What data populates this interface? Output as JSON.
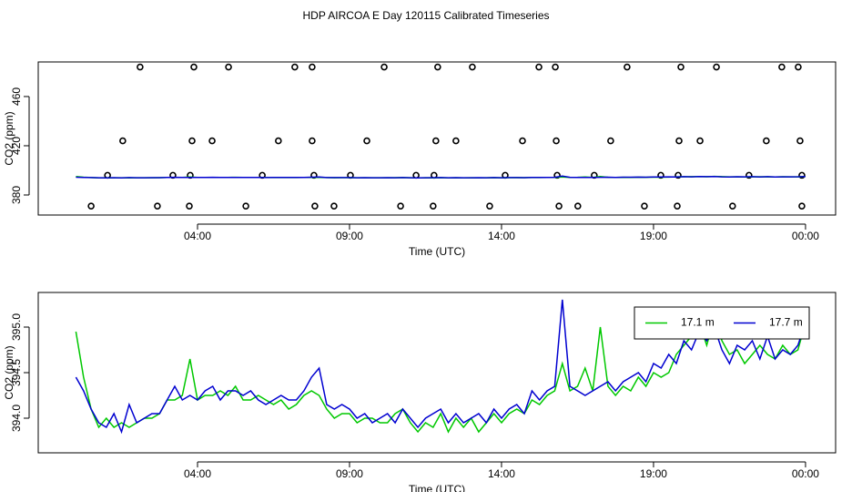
{
  "title": "HDP AIRCOA E  Day 120115  Calibrated Timeseries",
  "chart_data": [
    {
      "type": "scatter",
      "ylabel": "CO2 (ppm)",
      "xlabel": "Time (UTC)",
      "xlim": [
        -1.24,
        24.99
      ],
      "xticks": [
        {
          "value": 4,
          "label": "04:00"
        },
        {
          "value": 9,
          "label": "09:00"
        },
        {
          "value": 14,
          "label": "14:00"
        },
        {
          "value": 19,
          "label": "19:00"
        },
        {
          "value": 24,
          "label": "00:00"
        }
      ],
      "ylim": [
        363.7,
        488.1
      ],
      "yticks": [
        380,
        420,
        460
      ],
      "series": [
        {
          "color": "#000000",
          "x": [
            2.11,
            3.88,
            5.02,
            7.2,
            7.77,
            10.14,
            11.9,
            13.04,
            15.23,
            15.77,
            18.13,
            19.9,
            21.07,
            23.22,
            23.76,
            1.54,
            3.82,
            4.48,
            6.66,
            7.77,
            9.57,
            11.84,
            12.5,
            14.69,
            15.8,
            17.59,
            19.84,
            20.53,
            22.71,
            23.82,
            1.04,
            3.19,
            3.76,
            6.13,
            7.83,
            9.03,
            11.19,
            11.78,
            14.12,
            15.83,
            17.05,
            19.24,
            19.81,
            22.14,
            23.88,
            0.5,
            2.68,
            3.73,
            5.59,
            7.86,
            8.49,
            10.68,
            11.75,
            13.61,
            15.89,
            16.51,
            18.7,
            19.78,
            21.6,
            23.88
          ],
          "values": [
            484,
            484,
            484,
            484,
            484,
            484,
            484,
            484,
            484,
            484,
            484,
            484,
            484,
            484,
            484,
            424,
            424,
            424,
            424,
            424,
            424,
            424,
            424,
            424,
            424,
            424,
            424,
            424,
            424,
            424,
            396,
            396,
            396,
            396,
            396,
            396,
            396,
            396,
            396,
            396,
            396,
            396,
            396,
            396,
            396,
            371,
            371,
            371,
            371,
            371,
            371,
            371,
            371,
            371,
            371,
            371,
            371,
            371,
            371,
            371
          ]
        }
      ]
    },
    {
      "type": "line",
      "ylabel": "CO2 (ppm)",
      "xlabel": "Time (UTC)",
      "xlim": [
        -1.24,
        24.99
      ],
      "xticks": [
        {
          "value": 4,
          "label": "04:00"
        },
        {
          "value": 9,
          "label": "09:00"
        },
        {
          "value": 14,
          "label": "14:00"
        },
        {
          "value": 19,
          "label": "19:00"
        },
        {
          "value": 24,
          "label": "00:00"
        }
      ],
      "ylim": [
        393.62,
        395.38
      ],
      "yticks": [
        {
          "value": 394,
          "label": "394.0"
        },
        394.5,
        {
          "value": 395,
          "label": "395.0"
        }
      ],
      "legend": "top-right",
      "x": [
        0,
        0.25,
        0.5,
        0.75,
        1,
        1.25,
        1.5,
        1.75,
        2,
        2.25,
        2.5,
        2.75,
        3,
        3.25,
        3.5,
        3.75,
        4,
        4.25,
        4.5,
        4.75,
        5,
        5.25,
        5.5,
        5.75,
        6,
        6.25,
        6.5,
        6.75,
        7,
        7.25,
        7.5,
        7.75,
        8,
        8.25,
        8.5,
        8.75,
        9,
        9.25,
        9.5,
        9.75,
        10,
        10.25,
        10.5,
        10.75,
        11,
        11.25,
        11.5,
        11.75,
        12,
        12.25,
        12.5,
        12.75,
        13,
        13.25,
        13.5,
        13.75,
        14,
        14.25,
        14.5,
        14.75,
        15,
        15.25,
        15.5,
        15.75,
        16,
        16.25,
        16.5,
        16.75,
        17,
        17.25,
        17.5,
        17.75,
        18,
        18.25,
        18.5,
        18.75,
        19,
        19.25,
        19.5,
        19.75,
        20,
        20.25,
        20.5,
        20.75,
        21,
        21.25,
        21.5,
        21.75,
        22,
        22.25,
        22.5,
        22.75,
        23,
        23.25,
        23.5,
        23.75,
        24
      ],
      "series": [
        {
          "name": "17.1 m",
          "color": "#00c800",
          "values": [
            394.95,
            394.45,
            394.1,
            393.9,
            394,
            393.9,
            393.95,
            393.9,
            393.95,
            394,
            394,
            394.05,
            394.2,
            394.2,
            394.25,
            394.65,
            394.2,
            394.25,
            394.25,
            394.3,
            394.25,
            394.35,
            394.2,
            394.2,
            394.25,
            394.2,
            394.15,
            394.2,
            394.1,
            394.15,
            394.25,
            394.3,
            394.25,
            394.1,
            394,
            394.05,
            394.05,
            393.95,
            394,
            394,
            393.95,
            393.95,
            394.05,
            394.1,
            393.95,
            393.85,
            393.95,
            393.9,
            394.05,
            393.85,
            394,
            393.9,
            394,
            393.85,
            393.95,
            394.05,
            393.95,
            394.05,
            394.1,
            394.05,
            394.2,
            394.15,
            394.25,
            394.3,
            394.6,
            394.3,
            394.35,
            394.55,
            394.3,
            395,
            394.35,
            394.25,
            394.35,
            394.3,
            394.45,
            394.35,
            394.5,
            394.45,
            394.5,
            394.7,
            394.8,
            394.9,
            395.05,
            394.8,
            395.1,
            394.85,
            394.7,
            394.75,
            394.6,
            394.7,
            394.8,
            394.7,
            394.65,
            394.8,
            394.7,
            394.75,
            395.05
          ]
        },
        {
          "name": "17.7 m",
          "color": "#0000d0",
          "values": [
            394.45,
            394.3,
            394.1,
            393.95,
            393.9,
            394.05,
            393.85,
            394.15,
            393.95,
            394,
            394.05,
            394.05,
            394.2,
            394.35,
            394.2,
            394.25,
            394.2,
            394.3,
            394.35,
            394.2,
            394.3,
            394.3,
            394.25,
            394.3,
            394.2,
            394.15,
            394.2,
            394.25,
            394.2,
            394.2,
            394.3,
            394.45,
            394.55,
            394.15,
            394.1,
            394.15,
            394.1,
            394,
            394.05,
            393.95,
            394,
            394.05,
            393.95,
            394.1,
            394,
            393.9,
            394,
            394.05,
            394.1,
            393.95,
            394.05,
            393.95,
            394,
            394.05,
            393.95,
            394.1,
            394,
            394.1,
            394.15,
            394.05,
            394.3,
            394.2,
            394.3,
            394.35,
            395.3,
            394.35,
            394.3,
            394.25,
            394.3,
            394.35,
            394.4,
            394.3,
            394.4,
            394.45,
            394.5,
            394.4,
            394.6,
            394.55,
            394.7,
            394.6,
            394.85,
            394.75,
            394.95,
            394.85,
            395,
            394.75,
            394.6,
            394.8,
            394.75,
            394.85,
            394.65,
            394.9,
            394.65,
            394.75,
            394.7,
            394.8,
            395.05
          ]
        }
      ]
    }
  ]
}
